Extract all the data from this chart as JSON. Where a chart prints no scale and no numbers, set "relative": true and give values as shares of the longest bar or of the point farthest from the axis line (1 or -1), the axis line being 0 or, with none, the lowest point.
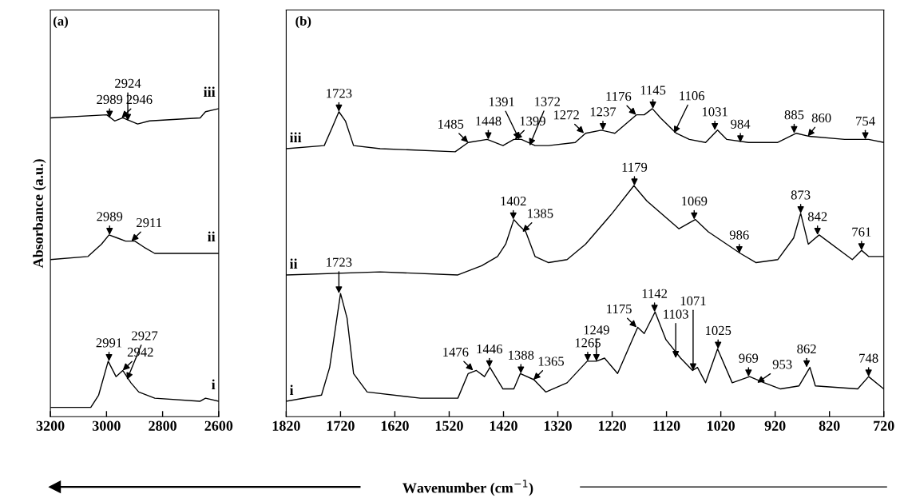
{
  "chart_data": [
    {
      "type": "line",
      "relative": true,
      "ylabel": "Absorbance (a.u.)",
      "xlim": [
        3200,
        2600
      ],
      "xticks": [
        3200,
        3000,
        2800,
        2600
      ],
      "tick_labels": "x",
      "grid": false,
      "legend": false,
      "series": [
        {
          "name": "iii",
          "color": "#000000",
          "x": [
            3200,
            2999,
            2971,
            2942,
            2889,
            2847,
            2666,
            2647,
            2600
          ],
          "values": [
            0.97,
            0.98,
            0.96,
            0.97,
            0.95,
            0.96,
            0.97,
            0.99,
            1.0
          ]
        },
        {
          "name": "ii",
          "color": "#000000",
          "x": [
            3200,
            3066,
            3018,
            2991,
            2961,
            2932,
            2899,
            2866,
            2828,
            2600
          ],
          "values": [
            0.51,
            0.52,
            0.56,
            0.59,
            0.58,
            0.57,
            0.57,
            0.55,
            0.53,
            0.53
          ]
        },
        {
          "name": "i",
          "color": "#000000",
          "x": [
            3200,
            3056,
            3028,
            2994,
            2966,
            2942,
            2913,
            2885,
            2828,
            2666,
            2647,
            2600
          ],
          "values": [
            0.03,
            0.03,
            0.07,
            0.18,
            0.13,
            0.15,
            0.11,
            0.08,
            0.06,
            0.05,
            0.06,
            0.05
          ]
        }
      ],
      "annotations": [
        "(a)",
        {
          "text": "2989",
          "x": 2989,
          "y": 0.97
        },
        {
          "text": "2946",
          "x": 2946,
          "y": 0.97
        },
        {
          "text": "2924",
          "x": 2924,
          "y": 0.96
        },
        {
          "text": "2989",
          "x": 2989,
          "y": 0.59
        },
        {
          "text": "2911",
          "x": 2911,
          "y": 0.57
        },
        {
          "text": "2991",
          "x": 2991,
          "y": 0.18
        },
        {
          "text": "2942",
          "x": 2942,
          "y": 0.15
        },
        {
          "text": "2927",
          "x": 2927,
          "y": 0.12
        }
      ]
    },
    {
      "type": "line",
      "relative": true,
      "xlabel": "Wavenumber (cm$^{−1}$)",
      "xlim": [
        1820,
        720
      ],
      "xticks": [
        1820,
        1720,
        1620,
        1520,
        1420,
        1320,
        1220,
        1120,
        1020,
        920,
        820,
        720
      ],
      "tick_labels": "x",
      "grid": false,
      "legend": false,
      "series": [
        {
          "name": "iii",
          "color": "#000000",
          "x": [
            1820,
            1750,
            1735,
            1723,
            1711,
            1696,
            1647,
            1509,
            1485,
            1450,
            1421,
            1401,
            1387,
            1362,
            1337,
            1288,
            1269,
            1240,
            1215,
            1175,
            1161,
            1146,
            1131,
            1102,
            1078,
            1048,
            1026,
            1009,
            969,
            916,
            881,
            857,
            792,
            748,
            720
          ],
          "values": [
            0.87,
            0.88,
            0.94,
            0.99,
            0.96,
            0.88,
            0.87,
            0.86,
            0.89,
            0.9,
            0.88,
            0.9,
            0.9,
            0.88,
            0.88,
            0.89,
            0.92,
            0.93,
            0.92,
            0.98,
            0.98,
            1.0,
            0.97,
            0.92,
            0.9,
            0.89,
            0.93,
            0.9,
            0.89,
            0.89,
            0.92,
            0.91,
            0.9,
            0.9,
            0.89
          ]
        },
        {
          "name": "ii",
          "color": "#000000",
          "x": [
            1820,
            1647,
            1504,
            1460,
            1431,
            1416,
            1401,
            1391,
            1379,
            1362,
            1337,
            1303,
            1269,
            1220,
            1180,
            1156,
            1097,
            1067,
            1043,
            984,
            955,
            915,
            886,
            873,
            859,
            839,
            778,
            761,
            748,
            720
          ],
          "values": [
            0.46,
            0.47,
            0.46,
            0.49,
            0.52,
            0.56,
            0.64,
            0.62,
            0.6,
            0.52,
            0.5,
            0.51,
            0.56,
            0.66,
            0.75,
            0.7,
            0.61,
            0.64,
            0.6,
            0.53,
            0.5,
            0.51,
            0.58,
            0.66,
            0.56,
            0.59,
            0.51,
            0.54,
            0.52,
            0.52
          ]
        },
        {
          "name": "i",
          "color": "#000000",
          "x": [
            1820,
            1755,
            1740,
            1730,
            1720,
            1708,
            1696,
            1671,
            1573,
            1504,
            1485,
            1470,
            1455,
            1445,
            1421,
            1401,
            1389,
            1364,
            1342,
            1303,
            1266,
            1249,
            1234,
            1210,
            1173,
            1161,
            1141,
            1121,
            1094,
            1072,
            1063,
            1048,
            1026,
            999,
            967,
            940,
            910,
            876,
            856,
            846,
            768,
            748,
            720
          ],
          "values": [
            0.05,
            0.07,
            0.16,
            0.28,
            0.4,
            0.32,
            0.14,
            0.08,
            0.06,
            0.06,
            0.14,
            0.15,
            0.13,
            0.16,
            0.09,
            0.09,
            0.14,
            0.12,
            0.08,
            0.11,
            0.18,
            0.18,
            0.19,
            0.14,
            0.29,
            0.27,
            0.34,
            0.25,
            0.19,
            0.15,
            0.16,
            0.11,
            0.22,
            0.11,
            0.13,
            0.11,
            0.09,
            0.1,
            0.16,
            0.1,
            0.09,
            0.13,
            0.09
          ]
        }
      ],
      "annotations": [
        "(b)",
        {
          "text": "1723",
          "x": 1723,
          "y": 0.99
        },
        {
          "text": "1485",
          "x": 1485,
          "y": 0.89
        },
        {
          "text": "1448",
          "x": 1448,
          "y": 0.9
        },
        {
          "text": "1399",
          "x": 1399,
          "y": 0.9
        },
        {
          "text": "1391",
          "x": 1391,
          "y": 0.9
        },
        {
          "text": "1372",
          "x": 1372,
          "y": 0.88
        },
        {
          "text": "1272",
          "x": 1272,
          "y": 0.92
        },
        {
          "text": "1237",
          "x": 1237,
          "y": 0.93
        },
        {
          "text": "1176",
          "x": 1176,
          "y": 0.98
        },
        {
          "text": "1145",
          "x": 1145,
          "y": 1.0
        },
        {
          "text": "1106",
          "x": 1106,
          "y": 0.92
        },
        {
          "text": "1031",
          "x": 1031,
          "y": 0.93
        },
        {
          "text": "984",
          "x": 984,
          "y": 0.89
        },
        {
          "text": "885",
          "x": 885,
          "y": 0.92
        },
        {
          "text": "860",
          "x": 860,
          "y": 0.91
        },
        {
          "text": "754",
          "x": 754,
          "y": 0.9
        },
        {
          "text": "1402",
          "x": 1402,
          "y": 0.64
        },
        {
          "text": "1385",
          "x": 1385,
          "y": 0.6
        },
        {
          "text": "1179",
          "x": 1179,
          "y": 0.75
        },
        {
          "text": "1069",
          "x": 1069,
          "y": 0.64
        },
        {
          "text": "986",
          "x": 986,
          "y": 0.53
        },
        {
          "text": "873",
          "x": 873,
          "y": 0.66
        },
        {
          "text": "842",
          "x": 842,
          "y": 0.59
        },
        {
          "text": "761",
          "x": 761,
          "y": 0.54
        },
        {
          "text": "1723",
          "x": 1723,
          "y": 0.4
        },
        {
          "text": "1476",
          "x": 1476,
          "y": 0.15
        },
        {
          "text": "1446",
          "x": 1446,
          "y": 0.16
        },
        {
          "text": "1388",
          "x": 1388,
          "y": 0.14
        },
        {
          "text": "1365",
          "x": 1365,
          "y": 0.12
        },
        {
          "text": "1265",
          "x": 1265,
          "y": 0.18
        },
        {
          "text": "1249",
          "x": 1249,
          "y": 0.18
        },
        {
          "text": "1175",
          "x": 1175,
          "y": 0.29
        },
        {
          "text": "1142",
          "x": 1142,
          "y": 0.34
        },
        {
          "text": "1103",
          "x": 1103,
          "y": 0.19
        },
        {
          "text": "1071",
          "x": 1071,
          "y": 0.15
        },
        {
          "text": "1025",
          "x": 1025,
          "y": 0.22
        },
        {
          "text": "969",
          "x": 969,
          "y": 0.13
        },
        {
          "text": "953",
          "x": 953,
          "y": 0.11
        },
        {
          "text": "862",
          "x": 862,
          "y": 0.16
        },
        {
          "text": "748",
          "x": 748,
          "y": 0.13
        }
      ]
    }
  ]
}
